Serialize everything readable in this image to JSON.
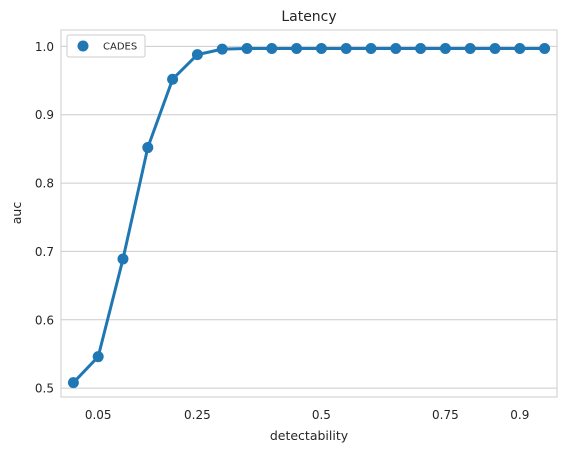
{
  "chart_data": {
    "type": "line",
    "title": "Latency",
    "xlabel": "detectability",
    "ylabel": "auc",
    "x": [
      0.01,
      0.05,
      0.1,
      0.15,
      0.2,
      0.25,
      0.3,
      0.35,
      0.4,
      0.45,
      0.5,
      0.55,
      0.6,
      0.65,
      0.7,
      0.75,
      0.8,
      0.85,
      0.9,
      0.95
    ],
    "x_ticks": [
      {
        "value": 0.05,
        "label": "0.05"
      },
      {
        "value": 0.25,
        "label": "0.25"
      },
      {
        "value": 0.5,
        "label": "0.5"
      },
      {
        "value": 0.75,
        "label": "0.75"
      },
      {
        "value": 0.9,
        "label": "0.9"
      }
    ],
    "y_ticks": [
      {
        "value": 0.5,
        "label": "0.5"
      },
      {
        "value": 0.6,
        "label": "0.6"
      },
      {
        "value": 0.7,
        "label": "0.7"
      },
      {
        "value": 0.8,
        "label": "0.8"
      },
      {
        "value": 0.9,
        "label": "0.9"
      },
      {
        "value": 1.0,
        "label": "1.0"
      }
    ],
    "ylim": [
      0.487,
      1.024
    ],
    "grid": "horizontal",
    "legend_position": "top-left",
    "series": [
      {
        "name": "CADES",
        "color": "#1f77b4",
        "values": [
          0.508,
          0.546,
          0.689,
          0.852,
          0.952,
          0.988,
          0.996,
          0.997,
          0.997,
          0.997,
          0.997,
          0.997,
          0.997,
          0.997,
          0.997,
          0.997,
          0.997,
          0.997,
          0.997,
          0.997
        ]
      }
    ]
  }
}
